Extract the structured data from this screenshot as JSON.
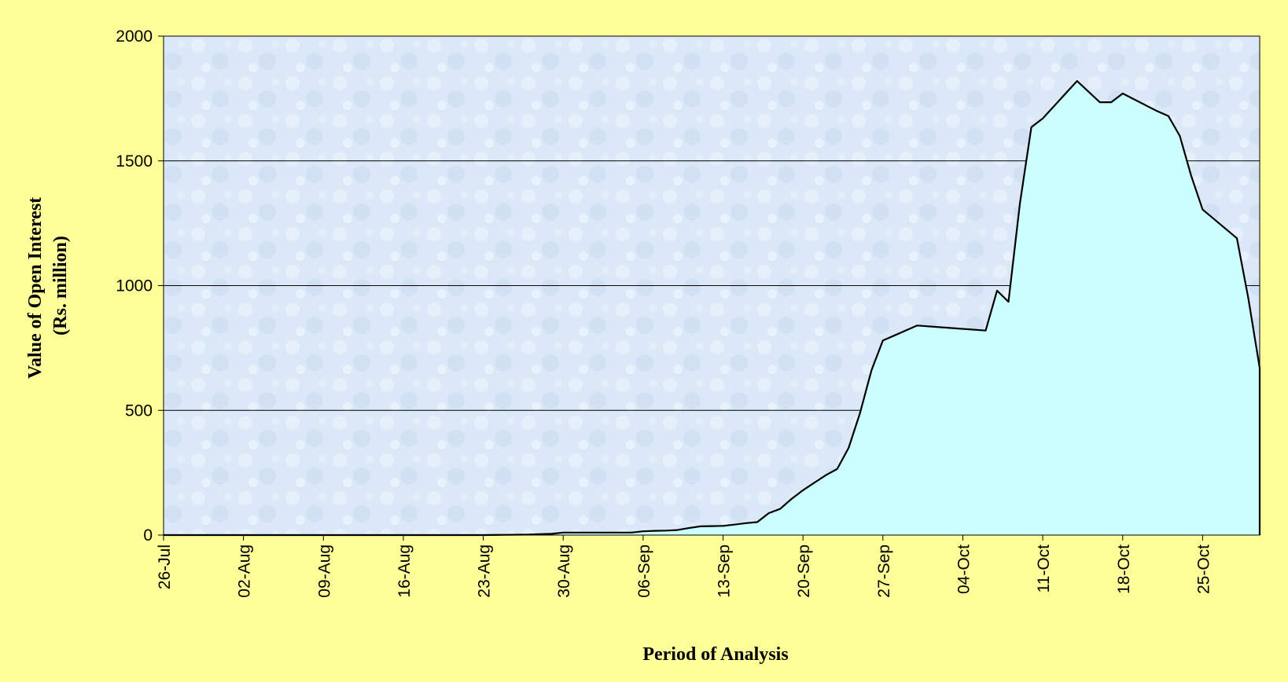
{
  "chart_data": {
    "type": "area",
    "title": "",
    "xlabel": "Period of Analysis",
    "ylabel_line1": "Value of Open Interest",
    "ylabel_line2": "(Rs. million)",
    "x_start": "2004-07-26",
    "x_end": "2004-10-30",
    "ylim": [
      0,
      2000
    ],
    "yticks": [
      0,
      500,
      1000,
      1500,
      2000
    ],
    "xticks": [
      "26-Jul",
      "02-Aug",
      "09-Aug",
      "16-Aug",
      "23-Aug",
      "30-Aug",
      "06-Sep",
      "13-Sep",
      "20-Sep",
      "27-Sep",
      "04-Oct",
      "11-Oct",
      "18-Oct",
      "25-Oct"
    ],
    "grid": "horizontal",
    "colors": {
      "fill": "#ccffff",
      "line": "#000000",
      "plot_bg": "#dbe8f7",
      "page_bg": "#ffff99"
    },
    "x": [
      "2004-07-26",
      "2004-08-23",
      "2004-08-25",
      "2004-08-27",
      "2004-08-29",
      "2004-08-30",
      "2004-08-31",
      "2004-09-01",
      "2004-09-02",
      "2004-09-03",
      "2004-09-04",
      "2004-09-05",
      "2004-09-06",
      "2004-09-07",
      "2004-09-08",
      "2004-09-09",
      "2004-09-10",
      "2004-09-11",
      "2004-09-12",
      "2004-09-13",
      "2004-09-14",
      "2004-09-15",
      "2004-09-16",
      "2004-09-17",
      "2004-09-18",
      "2004-09-19",
      "2004-09-20",
      "2004-09-21",
      "2004-09-22",
      "2004-09-23",
      "2004-09-24",
      "2004-09-25",
      "2004-09-26",
      "2004-09-27",
      "2004-09-30",
      "2004-10-03",
      "2004-10-06",
      "2004-10-07",
      "2004-10-08",
      "2004-10-09",
      "2004-10-10",
      "2004-10-11",
      "2004-10-14",
      "2004-10-16",
      "2004-10-17",
      "2004-10-18",
      "2004-10-21",
      "2004-10-22",
      "2004-10-23",
      "2004-10-24",
      "2004-10-25",
      "2004-10-28",
      "2004-10-29",
      "2004-10-30",
      "2004-10-30"
    ],
    "values": [
      0,
      0,
      1,
      2,
      5,
      10,
      10,
      10,
      10,
      10,
      10,
      10,
      15,
      17,
      18,
      20,
      28,
      35,
      36,
      37,
      42,
      48,
      52,
      88,
      105,
      145,
      180,
      210,
      240,
      265,
      350,
      490,
      660,
      780,
      840,
      830,
      820,
      980,
      935,
      1330,
      1635,
      1670,
      1820,
      1735,
      1735,
      1770,
      1700,
      1680,
      1600,
      1440,
      1305,
      1190,
      950,
      670,
      310
    ]
  }
}
